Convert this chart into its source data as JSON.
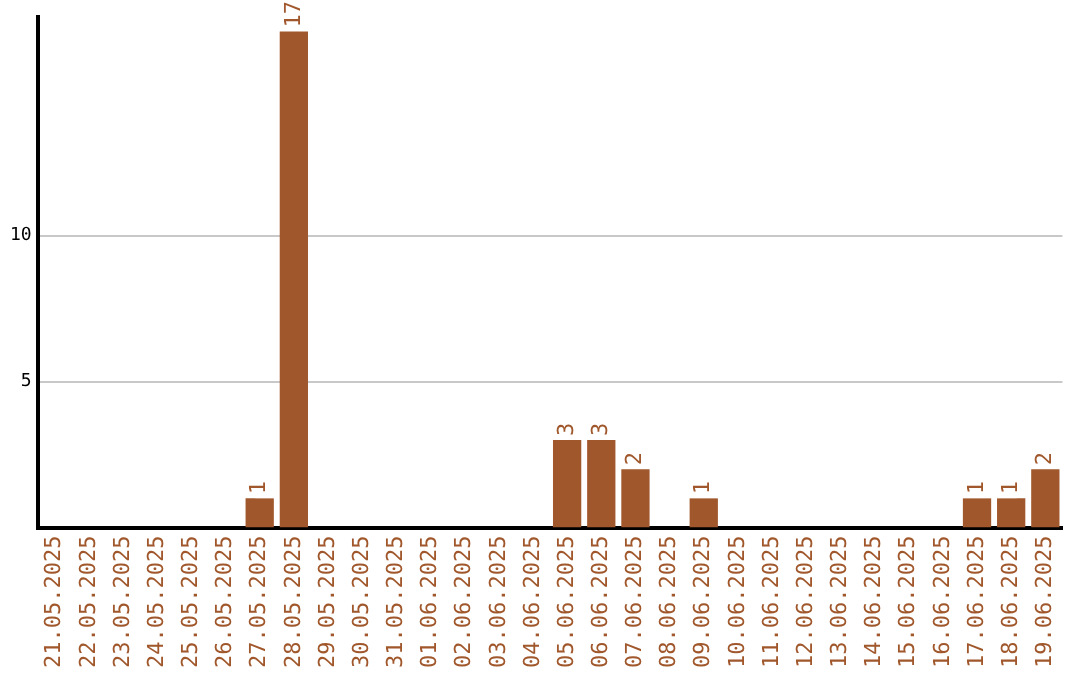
{
  "chart_data": {
    "type": "bar",
    "categories": [
      "21.05.2025",
      "22.05.2025",
      "23.05.2025",
      "24.05.2025",
      "25.05.2025",
      "26.05.2025",
      "27.05.2025",
      "28.05.2025",
      "29.05.2025",
      "30.05.2025",
      "31.05.2025",
      "01.06.2025",
      "02.06.2025",
      "03.06.2025",
      "04.06.2025",
      "05.06.2025",
      "06.06.2025",
      "07.06.2025",
      "08.06.2025",
      "09.06.2025",
      "10.06.2025",
      "11.06.2025",
      "12.06.2025",
      "13.06.2025",
      "14.06.2025",
      "15.06.2025",
      "16.06.2025",
      "17.06.2025",
      "18.06.2025",
      "19.06.2025"
    ],
    "values": [
      0,
      0,
      0,
      0,
      0,
      0,
      1,
      17,
      0,
      0,
      0,
      0,
      0,
      0,
      0,
      3,
      3,
      2,
      0,
      1,
      0,
      0,
      0,
      0,
      0,
      0,
      0,
      1,
      1,
      2
    ],
    "value_labels": [
      null,
      null,
      null,
      null,
      null,
      null,
      "1",
      "17",
      null,
      null,
      null,
      null,
      null,
      null,
      null,
      "3",
      "3",
      "2",
      null,
      "1",
      null,
      null,
      null,
      null,
      null,
      null,
      null,
      "1",
      "1",
      "2"
    ],
    "color": "#a0572b",
    "ylim": [
      0,
      17.5
    ],
    "yticks": [
      5,
      10
    ],
    "grid": "y"
  }
}
